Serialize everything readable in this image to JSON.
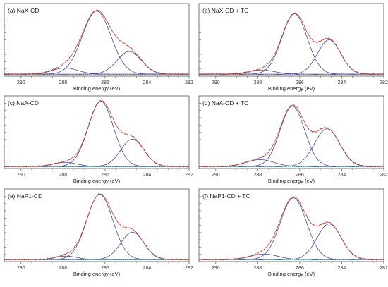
{
  "chart_data": [
    {
      "type": "line",
      "title": "(a) NaX-CD",
      "xlabel": "Binding energy (eV)",
      "xlim": [
        290.8,
        282
      ],
      "ylim": [
        0,
        1.06
      ],
      "xticks": [
        290,
        288,
        286,
        284,
        282
      ],
      "baseline": 0.03,
      "peaks": [
        {
          "center": 287.9,
          "height": 0.09,
          "sigma": 0.6
        },
        {
          "center": 286.4,
          "height": 0.92,
          "sigma": 0.68
        },
        {
          "center": 284.85,
          "height": 0.33,
          "sigma": 0.58
        }
      ],
      "series": [
        {
          "role": "envelope",
          "color": "#c0392b"
        },
        {
          "role": "component",
          "color": "#3a3f9a"
        },
        {
          "role": "background",
          "color": "#27ae60"
        }
      ]
    },
    {
      "type": "line",
      "title": "(b) NaX-CD + TC",
      "xlabel": "Binding energy (eV)",
      "xlim": [
        290.8,
        282
      ],
      "ylim": [
        0,
        1.06
      ],
      "xticks": [
        290,
        288,
        286,
        284,
        282
      ],
      "baseline": 0.03,
      "peaks": [
        {
          "center": 287.8,
          "height": 0.06,
          "sigma": 0.6
        },
        {
          "center": 286.25,
          "height": 0.88,
          "sigma": 0.6
        },
        {
          "center": 284.6,
          "height": 0.5,
          "sigma": 0.55
        }
      ],
      "series": [
        {
          "role": "envelope",
          "color": "#c0392b"
        },
        {
          "role": "component",
          "color": "#3a3f9a"
        },
        {
          "role": "background",
          "color": "#27ae60"
        }
      ]
    },
    {
      "type": "line",
      "title": "(c) NaA-CD",
      "xlabel": "Binding energy (eV)",
      "xlim": [
        290.8,
        282
      ],
      "ylim": [
        0,
        1.06
      ],
      "xticks": [
        290,
        288,
        286,
        284,
        282
      ],
      "baseline": 0.03,
      "peaks": [
        {
          "center": 287.9,
          "height": 0.06,
          "sigma": 0.55
        },
        {
          "center": 286.2,
          "height": 0.95,
          "sigma": 0.6
        },
        {
          "center": 284.7,
          "height": 0.4,
          "sigma": 0.55
        }
      ],
      "series": [
        {
          "role": "envelope",
          "color": "#c0392b"
        },
        {
          "role": "component",
          "color": "#3a3f9a"
        },
        {
          "role": "background",
          "color": "#27ae60"
        }
      ]
    },
    {
      "type": "line",
      "title": "(d) NaA-CD + TC",
      "xlabel": "Binding energy (eV)",
      "xlim": [
        290.8,
        282
      ],
      "ylim": [
        0,
        1.06
      ],
      "xticks": [
        290,
        288,
        286,
        284,
        282
      ],
      "baseline": 0.03,
      "peaks": [
        {
          "center": 287.9,
          "height": 0.1,
          "sigma": 0.65
        },
        {
          "center": 286.35,
          "height": 0.88,
          "sigma": 0.58
        },
        {
          "center": 284.7,
          "height": 0.55,
          "sigma": 0.6
        }
      ],
      "series": [
        {
          "role": "envelope",
          "color": "#c0392b"
        },
        {
          "role": "component",
          "color": "#3a3f9a"
        },
        {
          "role": "background",
          "color": "#27ae60"
        }
      ]
    },
    {
      "type": "line",
      "title": "(e) NaP1-CD",
      "xlabel": "Binding energy (eV)",
      "xlim": [
        290.8,
        282
      ],
      "ylim": [
        0,
        1.06
      ],
      "xticks": [
        290,
        288,
        286,
        284,
        282
      ],
      "baseline": 0.03,
      "peaks": [
        {
          "center": 287.85,
          "height": 0.05,
          "sigma": 0.5
        },
        {
          "center": 286.25,
          "height": 0.95,
          "sigma": 0.62
        },
        {
          "center": 284.7,
          "height": 0.4,
          "sigma": 0.55
        }
      ],
      "series": [
        {
          "role": "envelope",
          "color": "#c0392b"
        },
        {
          "role": "component",
          "color": "#3a3f9a"
        },
        {
          "role": "background",
          "color": "#27ae60"
        }
      ]
    },
    {
      "type": "line",
      "title": "(f) NaP1-CD + TC",
      "xlabel": "Binding energy (eV)",
      "xlim": [
        290.8,
        282
      ],
      "ylim": [
        0,
        1.06
      ],
      "xticks": [
        290,
        288,
        286,
        284,
        282
      ],
      "baseline": 0.03,
      "peaks": [
        {
          "center": 287.7,
          "height": 0.08,
          "sigma": 0.65
        },
        {
          "center": 286.3,
          "height": 0.9,
          "sigma": 0.62
        },
        {
          "center": 284.6,
          "height": 0.52,
          "sigma": 0.58
        }
      ],
      "series": [
        {
          "role": "envelope",
          "color": "#c0392b"
        },
        {
          "role": "component",
          "color": "#3a3f9a"
        },
        {
          "role": "background",
          "color": "#27ae60"
        }
      ]
    }
  ]
}
